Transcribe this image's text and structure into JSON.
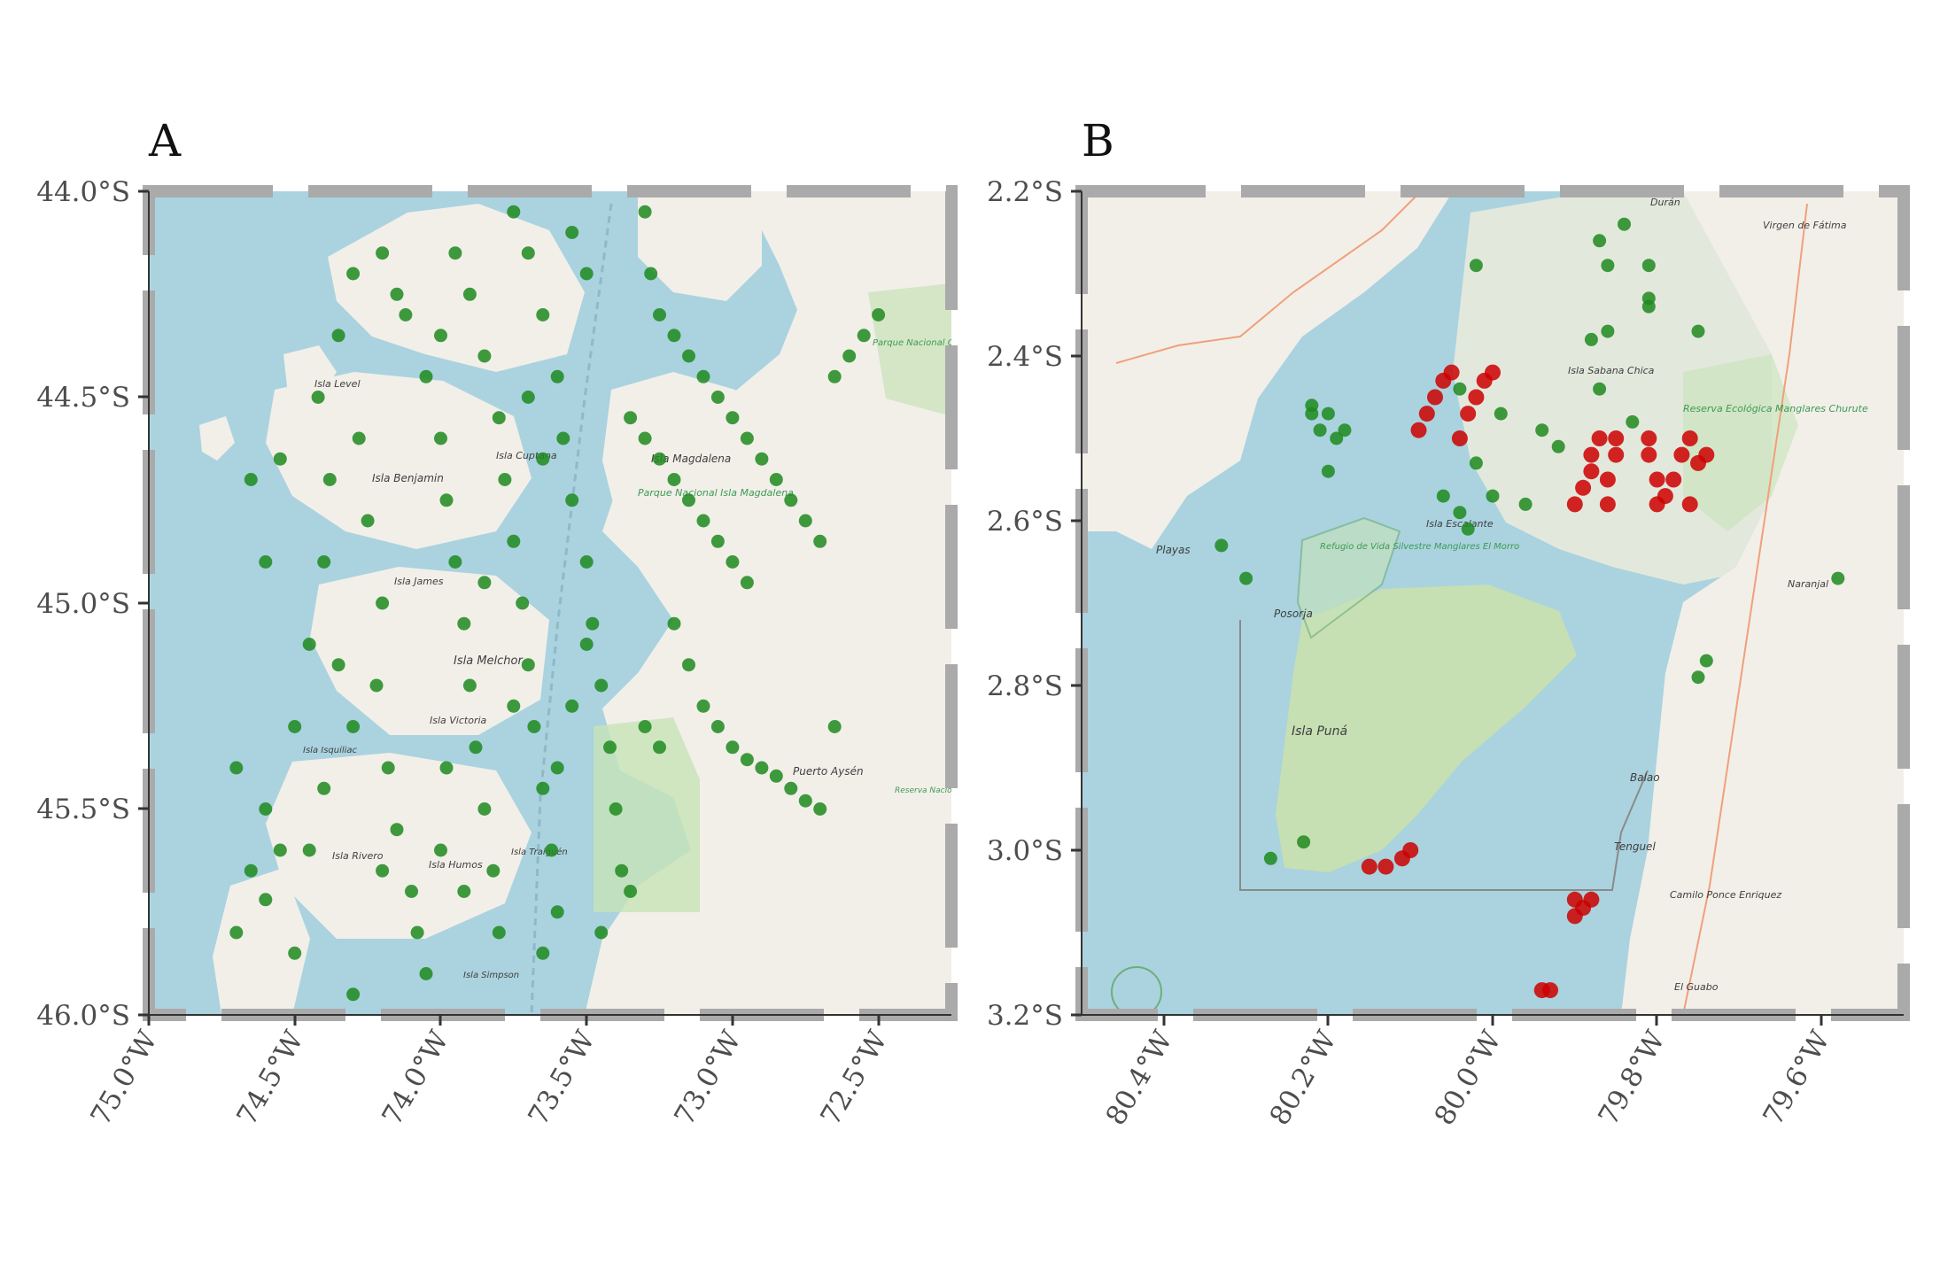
{
  "panels": [
    {
      "letter": "A",
      "y_ticks": [
        "44.0°S",
        "44.5°S",
        "45.0°S",
        "45.5°S",
        "46.0°S"
      ],
      "x_ticks": [
        "75.0°W",
        "74.5°W",
        "74.0°W",
        "73.5°W",
        "73.0°W",
        "72.5°W"
      ],
      "map_labels": [
        "Isla Level",
        "Isla Benjamin",
        "Isla Cuptana",
        "Isla James",
        "Isla Melchor",
        "Isla Victoria",
        "Isla Rivero",
        "Isla Humos",
        "Isla Magdalena",
        "Puerto Aysén",
        "Isla Traiguén",
        "Isla Simpson",
        "Isla Isquiliac"
      ],
      "park_labels": [
        "Parque Nacional Queulat",
        "Parque Nacional Isla Magdalena",
        "Reserva Nacional Río Simpson"
      ]
    },
    {
      "letter": "B",
      "y_ticks": [
        "2.2°S",
        "2.4°S",
        "2.6°S",
        "2.8°S",
        "3.0°S",
        "3.2°S"
      ],
      "x_ticks": [
        "80.4°W",
        "80.2°W",
        "80.0°W",
        "79.8°W",
        "79.6°W"
      ],
      "map_labels": [
        "Playas",
        "Posorja",
        "Isla Puná",
        "Isla Sabana Chica",
        "Isla Escalante",
        "Balao",
        "Tenguel",
        "Camilo Ponce Enriquez",
        "Naranjal",
        "Virgen de Fátima",
        "Durán",
        "El Guabo"
      ],
      "park_labels": [
        "Refugio de Vida Silvestre Manglares El Morro",
        "Reserva Ecológica Manglares Churute"
      ]
    }
  ],
  "chart_data": [
    {
      "type": "scatter",
      "panel": "A",
      "xlim": [
        -75.0,
        -72.25
      ],
      "ylim": [
        -46.0,
        -44.0
      ],
      "series": [
        {
          "color": "#1f8a1f",
          "points": [
            [
              -74.7,
              -45.8
            ],
            [
              -74.6,
              -45.72
            ],
            [
              -74.55,
              -45.6
            ],
            [
              -74.5,
              -45.3
            ],
            [
              -74.45,
              -45.1
            ],
            [
              -74.4,
              -44.9
            ],
            [
              -74.38,
              -44.7
            ],
            [
              -74.42,
              -44.5
            ],
            [
              -74.35,
              -44.35
            ],
            [
              -74.3,
              -44.2
            ],
            [
              -74.28,
              -44.6
            ],
            [
              -74.25,
              -44.8
            ],
            [
              -74.2,
              -45.0
            ],
            [
              -74.22,
              -45.2
            ],
            [
              -74.18,
              -45.4
            ],
            [
              -74.15,
              -45.55
            ],
            [
              -74.1,
              -45.7
            ],
            [
              -74.05,
              -45.9
            ],
            [
              -74.12,
              -44.3
            ],
            [
              -74.05,
              -44.45
            ],
            [
              -74.0,
              -44.6
            ],
            [
              -73.98,
              -44.75
            ],
            [
              -73.95,
              -44.9
            ],
            [
              -73.92,
              -45.05
            ],
            [
              -73.9,
              -45.2
            ],
            [
              -73.88,
              -45.35
            ],
            [
              -73.85,
              -45.5
            ],
            [
              -73.82,
              -45.65
            ],
            [
              -73.8,
              -45.8
            ],
            [
              -73.95,
              -44.15
            ],
            [
              -73.9,
              -44.25
            ],
            [
              -73.85,
              -44.4
            ],
            [
              -73.8,
              -44.55
            ],
            [
              -73.78,
              -44.7
            ],
            [
              -73.75,
              -44.85
            ],
            [
              -73.72,
              -45.0
            ],
            [
              -73.7,
              -45.15
            ],
            [
              -73.68,
              -45.3
            ],
            [
              -73.65,
              -45.45
            ],
            [
              -73.62,
              -45.6
            ],
            [
              -73.6,
              -45.75
            ],
            [
              -73.75,
              -44.05
            ],
            [
              -73.7,
              -44.15
            ],
            [
              -73.65,
              -44.3
            ],
            [
              -73.6,
              -44.45
            ],
            [
              -73.58,
              -44.6
            ],
            [
              -73.55,
              -44.75
            ],
            [
              -73.5,
              -44.9
            ],
            [
              -73.48,
              -45.05
            ],
            [
              -73.45,
              -45.2
            ],
            [
              -73.42,
              -45.35
            ],
            [
              -73.4,
              -45.5
            ],
            [
              -73.38,
              -45.65
            ],
            [
              -73.55,
              -44.1
            ],
            [
              -73.5,
              -44.2
            ],
            [
              -73.3,
              -44.05
            ],
            [
              -73.28,
              -44.2
            ],
            [
              -73.25,
              -44.3
            ],
            [
              -73.2,
              -44.35
            ],
            [
              -73.15,
              -44.4
            ],
            [
              -73.1,
              -44.45
            ],
            [
              -73.05,
              -44.5
            ],
            [
              -73.0,
              -44.55
            ],
            [
              -72.95,
              -44.6
            ],
            [
              -72.9,
              -44.65
            ],
            [
              -72.85,
              -44.7
            ],
            [
              -72.8,
              -44.75
            ],
            [
              -72.75,
              -44.8
            ],
            [
              -72.7,
              -44.85
            ],
            [
              -72.65,
              -44.45
            ],
            [
              -72.6,
              -44.4
            ],
            [
              -72.55,
              -44.35
            ],
            [
              -72.5,
              -44.3
            ],
            [
              -73.35,
              -44.55
            ],
            [
              -73.3,
              -44.6
            ],
            [
              -73.25,
              -44.65
            ],
            [
              -73.2,
              -44.7
            ],
            [
              -73.15,
              -44.75
            ],
            [
              -73.1,
              -44.8
            ],
            [
              -73.05,
              -44.85
            ],
            [
              -73.0,
              -44.9
            ],
            [
              -72.95,
              -44.95
            ],
            [
              -73.2,
              -45.05
            ],
            [
              -73.15,
              -45.15
            ],
            [
              -73.1,
              -45.25
            ],
            [
              -73.05,
              -45.3
            ],
            [
              -73.0,
              -45.35
            ],
            [
              -72.95,
              -45.38
            ],
            [
              -72.9,
              -45.4
            ],
            [
              -72.85,
              -45.42
            ],
            [
              -72.8,
              -45.45
            ],
            [
              -72.75,
              -45.48
            ],
            [
              -72.7,
              -45.5
            ],
            [
              -72.65,
              -45.3
            ],
            [
              -73.3,
              -45.3
            ],
            [
              -73.25,
              -45.35
            ],
            [
              -73.5,
              -45.1
            ],
            [
              -73.55,
              -45.25
            ],
            [
              -73.6,
              -45.4
            ],
            [
              -73.35,
              -45.7
            ],
            [
              -73.45,
              -45.8
            ],
            [
              -73.65,
              -45.85
            ],
            [
              -74.3,
              -45.95
            ],
            [
              -74.5,
              -45.85
            ],
            [
              -74.6,
              -45.5
            ],
            [
              -74.65,
              -45.65
            ],
            [
              -74.7,
              -45.4
            ],
            [
              -74.6,
              -44.9
            ],
            [
              -74.55,
              -44.65
            ],
            [
              -74.65,
              -44.7
            ],
            [
              -74.2,
              -44.15
            ],
            [
              -74.15,
              -44.25
            ],
            [
              -74.0,
              -44.35
            ],
            [
              -73.98,
              -45.4
            ],
            [
              -74.0,
              -45.6
            ],
            [
              -74.35,
              -45.15
            ],
            [
              -74.3,
              -45.3
            ],
            [
              -74.4,
              -45.45
            ],
            [
              -74.45,
              -45.6
            ],
            [
              -73.7,
              -44.5
            ],
            [
              -73.65,
              -44.65
            ],
            [
              -73.85,
              -44.95
            ],
            [
              -73.75,
              -45.25
            ],
            [
              -73.92,
              -45.7
            ],
            [
              -74.08,
              -45.8
            ],
            [
              -74.2,
              -45.65
            ]
          ]
        }
      ]
    },
    {
      "type": "scatter",
      "panel": "B",
      "xlim": [
        -80.5,
        -79.5
      ],
      "ylim": [
        -3.2,
        -2.2
      ],
      "series": [
        {
          "color": "#1f8a1f",
          "points": [
            [
              -80.02,
              -2.29
            ],
            [
              -79.87,
              -2.26
            ],
            [
              -79.84,
              -2.24
            ],
            [
              -79.86,
              -2.29
            ],
            [
              -79.81,
              -2.29
            ],
            [
              -79.81,
              -2.33
            ],
            [
              -79.81,
              -2.34
            ],
            [
              -79.86,
              -2.37
            ],
            [
              -79.88,
              -2.38
            ],
            [
              -79.75,
              -2.37
            ],
            [
              -79.87,
              -2.44
            ],
            [
              -79.83,
              -2.48
            ],
            [
              -80.04,
              -2.44
            ],
            [
              -79.99,
              -2.47
            ],
            [
              -79.94,
              -2.49
            ],
            [
              -79.92,
              -2.51
            ],
            [
              -80.02,
              -2.53
            ],
            [
              -80.0,
              -2.57
            ],
            [
              -79.96,
              -2.58
            ],
            [
              -80.04,
              -2.59
            ],
            [
              -80.03,
              -2.61
            ],
            [
              -80.06,
              -2.57
            ],
            [
              -80.22,
              -2.46
            ],
            [
              -80.22,
              -2.47
            ],
            [
              -80.2,
              -2.47
            ],
            [
              -80.18,
              -2.49
            ],
            [
              -80.19,
              -2.5
            ],
            [
              -80.21,
              -2.49
            ],
            [
              -80.2,
              -2.54
            ],
            [
              -80.33,
              -2.63
            ],
            [
              -80.3,
              -2.67
            ],
            [
              -79.58,
              -2.67
            ],
            [
              -79.74,
              -2.77
            ],
            [
              -79.75,
              -2.79
            ],
            [
              -80.27,
              -3.01
            ],
            [
              -80.23,
              -2.99
            ]
          ]
        },
        {
          "color": "#cc0000",
          "points": [
            [
              -80.09,
              -2.49
            ],
            [
              -80.08,
              -2.47
            ],
            [
              -80.07,
              -2.45
            ],
            [
              -80.06,
              -2.43
            ],
            [
              -80.05,
              -2.42
            ],
            [
              -80.04,
              -2.5
            ],
            [
              -80.03,
              -2.47
            ],
            [
              -80.02,
              -2.45
            ],
            [
              -80.01,
              -2.43
            ],
            [
              -80.0,
              -2.42
            ],
            [
              -79.9,
              -2.58
            ],
            [
              -79.89,
              -2.56
            ],
            [
              -79.88,
              -2.54
            ],
            [
              -79.88,
              -2.52
            ],
            [
              -79.87,
              -2.5
            ],
            [
              -79.86,
              -2.58
            ],
            [
              -79.86,
              -2.55
            ],
            [
              -79.85,
              -2.52
            ],
            [
              -79.85,
              -2.5
            ],
            [
              -79.8,
              -2.58
            ],
            [
              -79.8,
              -2.55
            ],
            [
              -79.81,
              -2.52
            ],
            [
              -79.81,
              -2.5
            ],
            [
              -79.78,
              -2.55
            ],
            [
              -79.77,
              -2.52
            ],
            [
              -79.76,
              -2.5
            ],
            [
              -79.75,
              -2.53
            ],
            [
              -79.74,
              -2.52
            ],
            [
              -79.76,
              -2.58
            ],
            [
              -79.79,
              -2.57
            ],
            [
              -80.15,
              -3.02
            ],
            [
              -80.13,
              -3.02
            ],
            [
              -80.11,
              -3.01
            ],
            [
              -80.1,
              -3.0
            ],
            [
              -79.9,
              -3.08
            ],
            [
              -79.89,
              -3.07
            ],
            [
              -79.88,
              -3.06
            ],
            [
              -79.9,
              -3.06
            ],
            [
              -79.94,
              -3.17
            ],
            [
              -79.93,
              -3.17
            ]
          ]
        }
      ]
    }
  ]
}
